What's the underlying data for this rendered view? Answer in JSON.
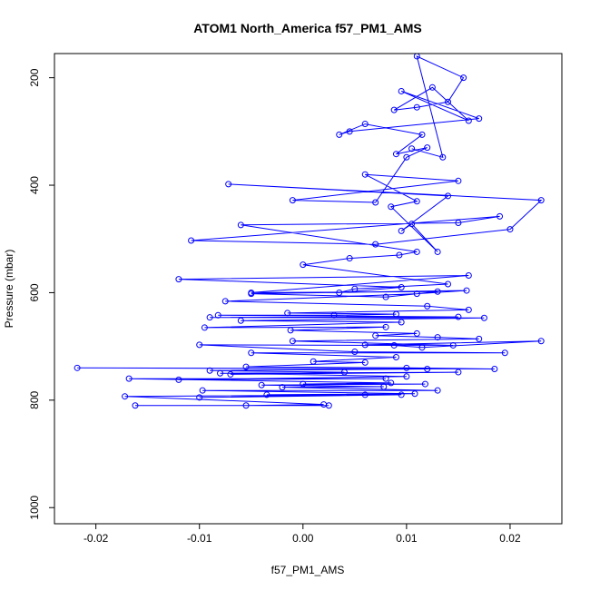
{
  "chart_data": {
    "type": "line",
    "title": "ATOM1 North_America f57_PM1_AMS",
    "xlabel": "f57_PM1_AMS",
    "ylabel": "Pressure (mbar)",
    "xlim": [
      -0.024,
      0.025
    ],
    "ylim": [
      1030,
      155
    ],
    "y_reversed": true,
    "xticks": [
      -0.02,
      -0.01,
      0.0,
      0.01,
      0.02
    ],
    "xtick_labels": [
      "-0.02",
      "-0.01",
      "0.00",
      "0.01",
      "0.02"
    ],
    "yticks": [
      200,
      400,
      600,
      800,
      1000
    ],
    "ytick_labels": [
      "200",
      "400",
      "600",
      "800",
      "1000"
    ],
    "color": "#0000ff",
    "marker": "open-circle",
    "grid": false,
    "series": [
      {
        "points": [
          [
            0.0025,
            810
          ],
          [
            -0.0162,
            810
          ],
          [
            -0.0055,
            810
          ],
          [
            0.002,
            808
          ],
          [
            -0.0172,
            793
          ],
          [
            0.0095,
            790
          ],
          [
            -0.01,
            795
          ],
          [
            0.006,
            790
          ],
          [
            -0.0035,
            790
          ],
          [
            0.0108,
            788
          ],
          [
            -0.0097,
            782
          ],
          [
            0.013,
            782
          ],
          [
            -0.002,
            776
          ],
          [
            0.0078,
            775
          ],
          [
            -0.004,
            772
          ],
          [
            0.0118,
            770
          ],
          [
            0.0,
            770
          ],
          [
            0.0085,
            768
          ],
          [
            -0.0168,
            760
          ],
          [
            0.008,
            760
          ],
          [
            -0.012,
            762
          ],
          [
            0.01,
            756
          ],
          [
            -0.008,
            750
          ],
          [
            0.015,
            748
          ],
          [
            -0.007,
            752
          ],
          [
            0.004,
            748
          ],
          [
            -0.009,
            745
          ],
          [
            0.012,
            742
          ],
          [
            -0.0218,
            740
          ],
          [
            0.0185,
            742
          ],
          [
            0.01,
            740
          ],
          [
            -0.0055,
            738
          ],
          [
            0.006,
            730
          ],
          [
            0.001,
            728
          ],
          [
            0.009,
            720
          ],
          [
            -0.005,
            712
          ],
          [
            0.0195,
            712
          ],
          [
            0.005,
            710
          ],
          [
            -0.01,
            697
          ],
          [
            0.0088,
            698
          ],
          [
            0.0115,
            702
          ],
          [
            0.023,
            690
          ],
          [
            0.006,
            697
          ],
          [
            0.0145,
            698
          ],
          [
            -0.001,
            690
          ],
          [
            0.017,
            686
          ],
          [
            0.013,
            683
          ],
          [
            0.007,
            680
          ],
          [
            0.011,
            676
          ],
          [
            -0.0012,
            670
          ],
          [
            0.008,
            664
          ],
          [
            -0.0095,
            665
          ],
          [
            0.0095,
            655
          ],
          [
            -0.006,
            652
          ],
          [
            0.0175,
            647
          ],
          [
            -0.009,
            646
          ],
          [
            0.015,
            645
          ],
          [
            -0.0082,
            642
          ],
          [
            0.003,
            642
          ],
          [
            0.009,
            640
          ],
          [
            -0.0015,
            638
          ],
          [
            0.016,
            632
          ],
          [
            0.012,
            625
          ],
          [
            -0.0075,
            616
          ],
          [
            0.011,
            602
          ],
          [
            0.0158,
            596
          ],
          [
            -0.005,
            602
          ],
          [
            0.008,
            608
          ],
          [
            0.013,
            598
          ],
          [
            -0.005,
            600
          ],
          [
            0.016,
            568
          ],
          [
            -0.012,
            575
          ],
          [
            0.0095,
            590
          ],
          [
            0.0035,
            600
          ],
          [
            0.005,
            593
          ],
          [
            0.014,
            584
          ],
          [
            0.0,
            548
          ],
          [
            0.0045,
            536
          ],
          [
            0.0093,
            530
          ],
          [
            0.011,
            524
          ],
          [
            -0.006,
            474
          ],
          [
            0.015,
            470
          ],
          [
            0.019,
            458
          ],
          [
            -0.0108,
            503
          ],
          [
            0.007,
            510
          ],
          [
            0.02,
            482
          ],
          [
            0.023,
            428
          ],
          [
            -0.0072,
            398
          ],
          [
            0.014,
            420
          ],
          [
            0.0095,
            485
          ],
          [
            0.0105,
            472
          ],
          [
            0.013,
            524
          ],
          [
            0.0085,
            440
          ],
          [
            0.011,
            430
          ],
          [
            0.006,
            380
          ],
          [
            0.015,
            392
          ],
          [
            -0.001,
            428
          ],
          [
            0.007,
            432
          ],
          [
            0.01,
            348
          ],
          [
            0.012,
            330
          ],
          [
            0.009,
            342
          ],
          [
            0.0115,
            306
          ],
          [
            0.006,
            286
          ],
          [
            0.0035,
            306
          ],
          [
            0.0045,
            300
          ],
          [
            0.017,
            276
          ],
          [
            0.0095,
            225
          ],
          [
            0.016,
            280
          ],
          [
            0.0125,
            218
          ],
          [
            0.0088,
            260
          ],
          [
            0.011,
            255
          ],
          [
            0.014,
            245
          ],
          [
            0.0155,
            200
          ],
          [
            0.011,
            160
          ],
          [
            0.0135,
            348
          ],
          [
            0.0105,
            332
          ]
        ]
      }
    ]
  }
}
